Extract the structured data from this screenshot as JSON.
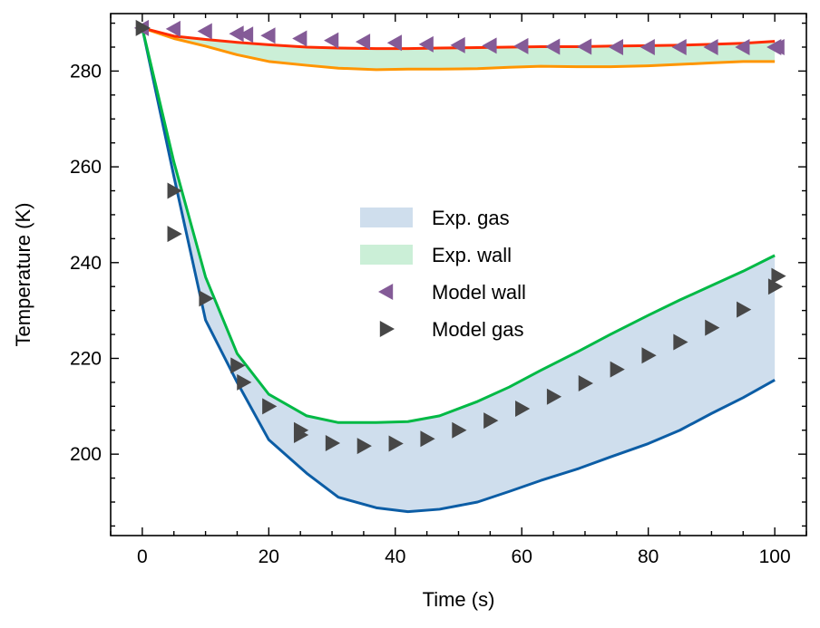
{
  "chart_data": {
    "type": "line",
    "xlabel": "Time (s)",
    "ylabel": "Temperature (K)",
    "xlim": [
      -5,
      105
    ],
    "ylim": [
      183,
      292
    ],
    "x_ticks": [
      0,
      20,
      40,
      60,
      80,
      100
    ],
    "y_ticks": [
      200,
      220,
      240,
      260,
      280
    ],
    "legend_position": "center-right",
    "bands": [
      {
        "name": "Exp. gas",
        "fill": "#cfdeed",
        "lower": {
          "color": "#0c5da5",
          "x": [
            0,
            5,
            10,
            15,
            20,
            26,
            31,
            37,
            42,
            47,
            53,
            58,
            63,
            69,
            74,
            80,
            85,
            90,
            95,
            100
          ],
          "y": [
            289,
            258,
            228,
            215,
            203,
            196,
            191,
            188.8,
            188,
            188.5,
            190,
            192.2,
            194.5,
            197,
            199.4,
            202.2,
            205,
            208.5,
            211.8,
            215.5
          ]
        },
        "upper": {
          "color": "#00b945",
          "x": [
            0,
            5,
            10,
            15,
            20,
            26,
            31,
            37,
            42,
            47,
            53,
            58,
            63,
            69,
            74,
            80,
            85,
            90,
            95,
            100
          ],
          "y": [
            289,
            261,
            237,
            221,
            212.5,
            208,
            206.6,
            206.6,
            206.8,
            208,
            211,
            214,
            217.5,
            221.5,
            225,
            229,
            232.2,
            235.2,
            238.2,
            241.5
          ]
        }
      },
      {
        "name": "Exp. wall",
        "fill": "#cbefd7",
        "upper": {
          "color": "#ff2c00",
          "x": [
            0,
            5,
            10,
            15,
            20,
            26,
            31,
            37,
            42,
            47,
            53,
            58,
            63,
            69,
            74,
            80,
            85,
            90,
            95,
            100
          ],
          "y": [
            289,
            287.3,
            286.6,
            286,
            285.5,
            285,
            284.8,
            284.7,
            284.7,
            284.8,
            284.9,
            285,
            285.1,
            285.1,
            285.2,
            285.3,
            285.4,
            285.6,
            285.8,
            286.2
          ]
        },
        "lower": {
          "color": "#ff9500",
          "x": [
            0,
            5,
            10,
            15,
            20,
            26,
            31,
            37,
            42,
            47,
            53,
            58,
            63,
            69,
            74,
            80,
            85,
            90,
            95,
            100
          ],
          "y": [
            289,
            286.8,
            285.2,
            283.4,
            282,
            281.2,
            280.6,
            280.3,
            280.4,
            280.4,
            280.5,
            280.8,
            281,
            280.9,
            280.9,
            281.1,
            281.4,
            281.7,
            282,
            282
          ]
        }
      }
    ],
    "series": [
      {
        "name": "Model wall",
        "marker": "triangle-left",
        "color": "#845b97",
        "x": [
          0,
          5,
          10,
          15,
          16.5,
          20,
          25,
          30,
          35,
          40,
          45,
          50,
          55,
          60,
          65,
          70,
          75,
          80,
          85,
          90,
          95,
          100,
          100.5
        ],
        "y": [
          289,
          288.8,
          288.3,
          287.8,
          287.6,
          287.4,
          286.8,
          286.4,
          286.1,
          285.9,
          285.6,
          285.4,
          285.3,
          285.2,
          285.1,
          285.1,
          285,
          285,
          285,
          285,
          285,
          285,
          285
        ]
      },
      {
        "name": "Model gas",
        "marker": "triangle-right",
        "color": "#474747",
        "x": [
          0,
          5,
          5,
          10,
          15,
          16,
          20,
          25,
          25,
          30,
          35,
          40,
          45,
          50,
          55,
          60,
          65,
          70,
          75,
          80,
          85,
          90,
          95,
          100,
          100.5
        ],
        "y": [
          289,
          255,
          246,
          232.5,
          218.5,
          215,
          210,
          205,
          204,
          202.3,
          201.7,
          202.2,
          203.2,
          205,
          207,
          209.5,
          212,
          214.8,
          217.7,
          220.6,
          223.4,
          226.4,
          230.2,
          235,
          237.2
        ]
      }
    ]
  }
}
